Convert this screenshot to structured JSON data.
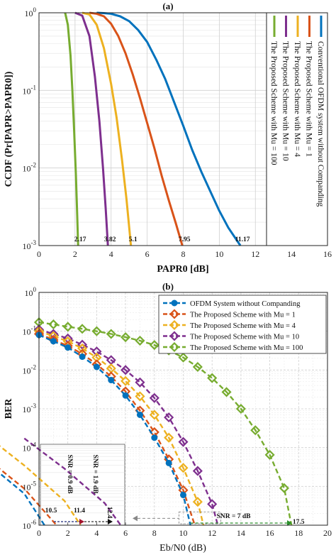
{
  "colors": {
    "blue": "#0072BD",
    "orange": "#D95319",
    "yellow": "#EDB120",
    "purple": "#7E2F8E",
    "green": "#77AC30",
    "dark_red": "#A2142F",
    "navy": "#1f2a7a",
    "grid": "#d0d0d0"
  },
  "chart_data": [
    {
      "type": "line",
      "panel_label": "(a)",
      "xlabel": "PAPR0 [dB]",
      "ylabel": "CCDF (Pr[PAPR>PAPR0])",
      "xlim": [
        0,
        16
      ],
      "ylim": [
        0.001,
        1
      ],
      "yscale": "log",
      "grid": true,
      "legend_position": "right (vertical text)",
      "x_ticks": [
        0,
        2,
        4,
        6,
        8,
        10,
        12,
        14,
        16
      ],
      "y_ticks": [
        {
          "value": 1,
          "label": "10^0"
        },
        {
          "value": 0.1,
          "label": "10^-1"
        },
        {
          "value": 0.01,
          "label": "10^-2"
        },
        {
          "value": 0.001,
          "label": "10^-3"
        }
      ],
      "series": [
        {
          "name": "Conventional OFDM system without Companding",
          "color": "blue",
          "x": [
            3.2,
            3.6,
            4.0,
            4.5,
            5.0,
            5.5,
            6.0,
            6.5,
            7.0,
            7.5,
            8.0,
            8.5,
            9.0,
            9.5,
            10.0,
            10.5,
            11.17
          ],
          "y": [
            1,
            0.99,
            0.97,
            0.9,
            0.78,
            0.6,
            0.42,
            0.25,
            0.14,
            0.07,
            0.035,
            0.017,
            0.009,
            0.005,
            0.0028,
            0.0017,
            0.001
          ]
        },
        {
          "name": "The Proposed Scheme with Mu = 1",
          "color": "orange",
          "x": [
            2.8,
            3.2,
            3.6,
            4.0,
            4.4,
            4.8,
            5.2,
            5.6,
            6.0,
            6.4,
            6.8,
            7.2,
            7.6,
            7.95
          ],
          "y": [
            1,
            0.97,
            0.9,
            0.72,
            0.5,
            0.3,
            0.16,
            0.08,
            0.038,
            0.018,
            0.008,
            0.0038,
            0.0019,
            0.001
          ]
        },
        {
          "name": "The Proposed Scheme with Mu = 4",
          "color": "yellow",
          "x": [
            2.4,
            2.8,
            3.2,
            3.6,
            4.0,
            4.3,
            4.6,
            4.85,
            5.1
          ],
          "y": [
            1,
            0.95,
            0.7,
            0.35,
            0.12,
            0.045,
            0.013,
            0.004,
            0.001
          ]
        },
        {
          "name": "The Proposed Scheme with Mu = 10",
          "color": "purple",
          "x": [
            2.0,
            2.4,
            2.8,
            3.1,
            3.35,
            3.55,
            3.7,
            3.82
          ],
          "y": [
            1,
            0.92,
            0.5,
            0.15,
            0.04,
            0.01,
            0.003,
            0.001
          ]
        },
        {
          "name": "The Proposed Scheme with Mu = 100",
          "color": "green",
          "x": [
            1.45,
            1.6,
            1.75,
            1.85,
            1.95,
            2.05,
            2.12,
            2.17
          ],
          "y": [
            1,
            0.7,
            0.28,
            0.1,
            0.03,
            0.008,
            0.0025,
            0.001
          ]
        }
      ],
      "annotations": [
        {
          "text": "2.17",
          "x": 2.17
        },
        {
          "text": "3.82",
          "x": 3.82
        },
        {
          "text": "5.1",
          "x": 5.1
        },
        {
          "text": "7.95",
          "x": 7.95
        },
        {
          "text": "11.17",
          "x": 11.17
        }
      ]
    },
    {
      "type": "line",
      "panel_label": "(b)",
      "xlabel": "Eb/N0 (dB)",
      "ylabel": "BER",
      "xlim": [
        0,
        20
      ],
      "ylim": [
        1e-06,
        1
      ],
      "yscale": "log",
      "grid": true,
      "legend_position": "top-right",
      "x_ticks": [
        0,
        2,
        4,
        6,
        8,
        10,
        12,
        14,
        16,
        18,
        20
      ],
      "y_ticks": [
        {
          "value": 1,
          "label": "10^0"
        },
        {
          "value": 0.1,
          "label": "10^-1"
        },
        {
          "value": 0.01,
          "label": "10^-2"
        },
        {
          "value": 0.001,
          "label": "10^-3"
        },
        {
          "value": 0.0001,
          "label": "10^-4"
        },
        {
          "value": 1e-05,
          "label": "10^-5"
        },
        {
          "value": 1e-06,
          "label": "10^-6"
        }
      ],
      "series": [
        {
          "name": "OFDM System without Companding",
          "color": "blue",
          "marker": "circle",
          "x": [
            0,
            1,
            2,
            3,
            4,
            5,
            6,
            7,
            8,
            9,
            10,
            10.5
          ],
          "y": [
            0.08,
            0.055,
            0.038,
            0.022,
            0.012,
            0.0055,
            0.0022,
            0.0007,
            0.00018,
            4e-05,
            6e-06,
            1e-06
          ]
        },
        {
          "name": "The Proposed Scheme with Mu = 1",
          "color": "orange",
          "marker": "diamond",
          "x": [
            0,
            1,
            2,
            3,
            4,
            5,
            6,
            7,
            8,
            9,
            10,
            10.8
          ],
          "y": [
            0.085,
            0.06,
            0.042,
            0.026,
            0.014,
            0.0068,
            0.0028,
            0.0009,
            0.00025,
            5e-05,
            8e-06,
            1e-06
          ]
        },
        {
          "name": "The Proposed Scheme with Mu = 4",
          "color": "yellow",
          "marker": "diamond",
          "x": [
            0,
            1,
            2,
            3,
            4,
            5,
            6,
            7,
            8,
            9,
            10,
            11,
            11.4
          ],
          "y": [
            0.1,
            0.075,
            0.055,
            0.036,
            0.021,
            0.011,
            0.0052,
            0.0021,
            0.0007,
            0.00018,
            3e-05,
            4e-06,
            1e-06
          ]
        },
        {
          "name": "The Proposed Scheme with Mu = 10",
          "color": "purple",
          "marker": "diamond",
          "x": [
            0,
            1,
            2,
            3,
            4,
            5,
            6,
            7,
            8,
            9,
            10,
            11,
            12,
            12.4
          ],
          "y": [
            0.11,
            0.085,
            0.065,
            0.045,
            0.03,
            0.018,
            0.01,
            0.0048,
            0.0019,
            0.0006,
            0.00014,
            2.5e-05,
            3.5e-06,
            1e-06
          ]
        },
        {
          "name": "The Proposed Scheme with Mu = 100",
          "color": "green",
          "marker": "diamond",
          "x": [
            0,
            1,
            2,
            3,
            4,
            5,
            6,
            7,
            8,
            9,
            10,
            11,
            12,
            13,
            14,
            15,
            16,
            17,
            17.5
          ],
          "y": [
            0.17,
            0.15,
            0.13,
            0.115,
            0.1,
            0.085,
            0.07,
            0.057,
            0.044,
            0.032,
            0.021,
            0.012,
            0.0062,
            0.0027,
            0.001,
            0.00028,
            6.5e-05,
            9e-06,
            1e-06
          ]
        }
      ],
      "annotations": [
        {
          "text": "SNR = 7 dB",
          "x": 13,
          "y": 1.3e-06
        },
        {
          "text": "17.5",
          "x": 17.5,
          "y": 1e-06
        }
      ],
      "inset": {
        "xlim": [
          10.4,
          12.5
        ],
        "ylim": [
          1e-06,
          0.0001
        ],
        "x_ticks": [
          2,
          4,
          6
        ],
        "annotations": [
          {
            "text": "10.5"
          },
          {
            "text": "11.4"
          },
          {
            "text": "12.4"
          },
          {
            "text": "SNR = 0.9 dB"
          },
          {
            "text": "SNR = 1.9 dB"
          }
        ]
      }
    }
  ]
}
